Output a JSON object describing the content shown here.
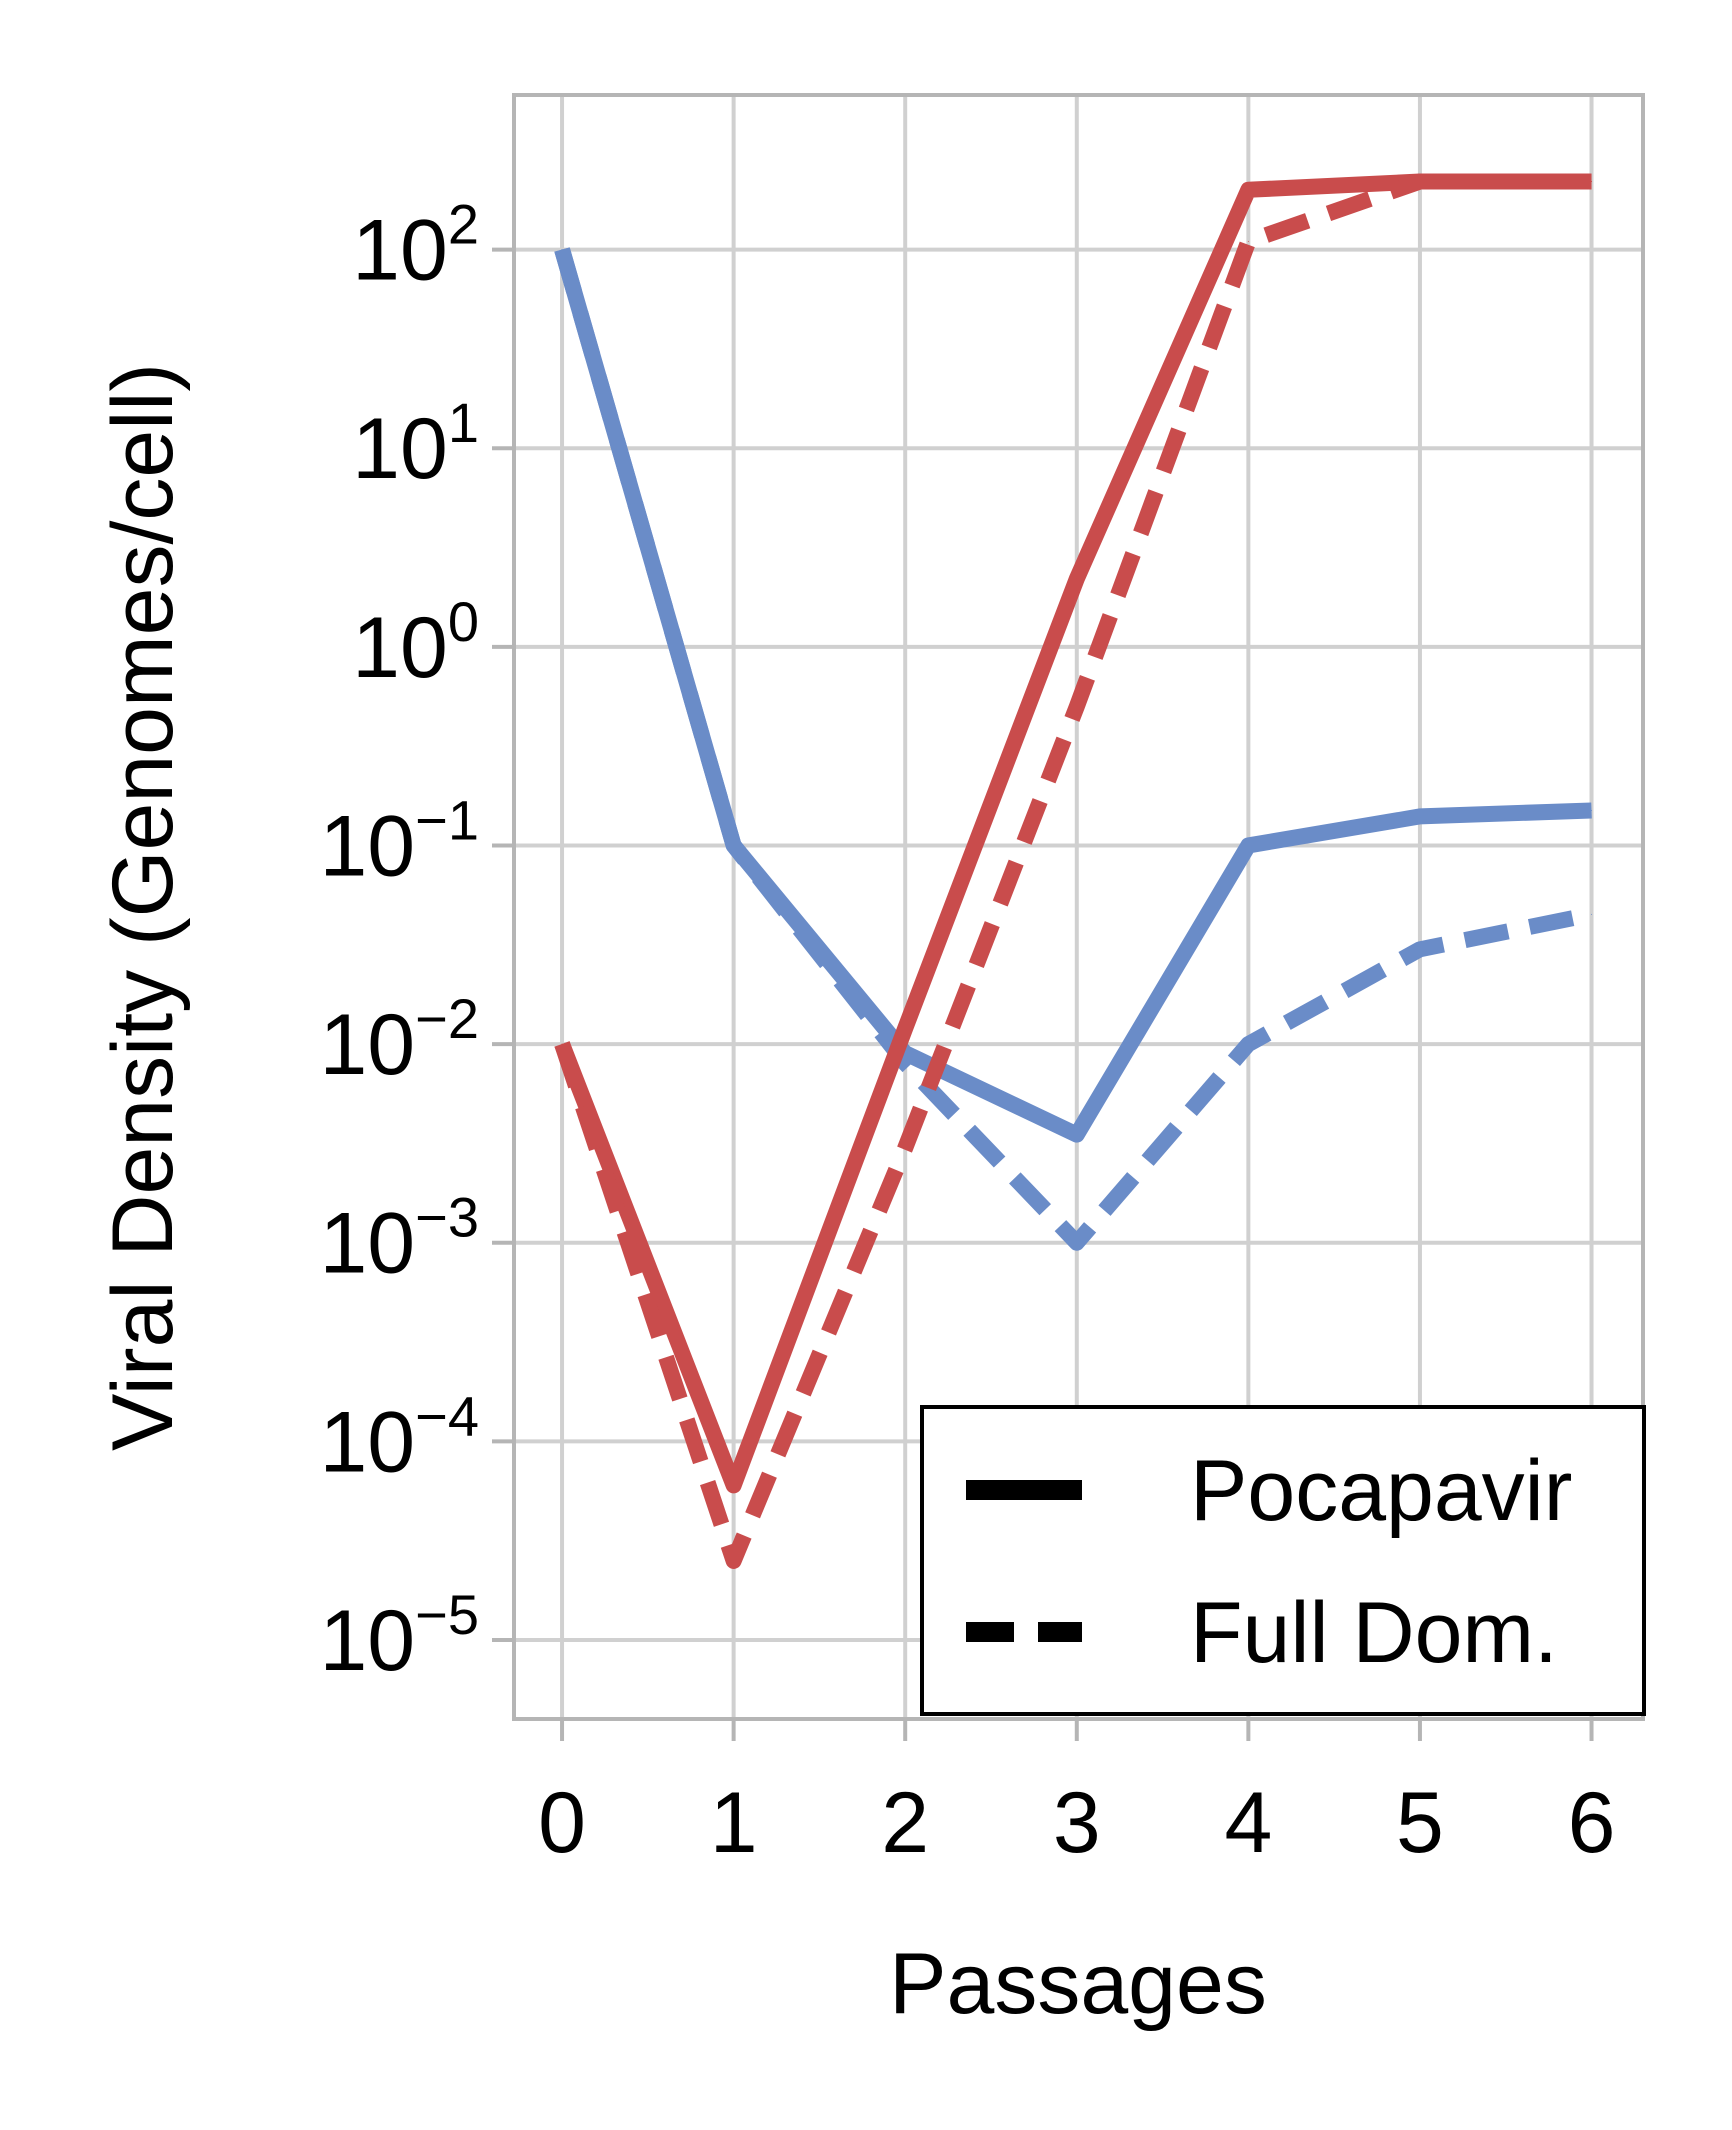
{
  "chart_data": {
    "type": "line",
    "xlabel": "Passages",
    "ylabel": "Viral Density (Genomes/cell)",
    "x": [
      0,
      1,
      2,
      3,
      4,
      5,
      6
    ],
    "x_ticks": [
      "0",
      "1",
      "2",
      "3",
      "4",
      "5",
      "6"
    ],
    "xlim": [
      -0.28,
      6.3
    ],
    "ylim": [
      4e-06,
      600
    ],
    "y_scale": "log",
    "y_ticks": [
      {
        "value": 1e-05,
        "base": "10",
        "exp": "−5"
      },
      {
        "value": 0.0001,
        "base": "10",
        "exp": "−4"
      },
      {
        "value": 0.001,
        "base": "10",
        "exp": "−3"
      },
      {
        "value": 0.01,
        "base": "10",
        "exp": "−2"
      },
      {
        "value": 0.1,
        "base": "10",
        "exp": "−1"
      },
      {
        "value": 1,
        "base": "10",
        "exp": "0"
      },
      {
        "value": 10,
        "base": "10",
        "exp": "1"
      },
      {
        "value": 100,
        "base": "10",
        "exp": "2"
      }
    ],
    "grid": true,
    "legend_position": "bottom-right",
    "legend": [
      {
        "label": "Pocapavir",
        "style": "solid"
      },
      {
        "label": "Full Dom.",
        "style": "dashed"
      }
    ],
    "series": [
      {
        "color": "#6a8cc8",
        "style": "solid",
        "values": [
          100,
          0.1,
          0.009,
          0.0035,
          0.1,
          0.14,
          0.15
        ]
      },
      {
        "color": "#6a8cc8",
        "style": "dashed",
        "values": [
          100,
          0.1,
          0.008,
          0.001,
          0.01,
          0.03,
          0.045
        ]
      },
      {
        "color": "#c94c4c",
        "style": "solid",
        "values": [
          0.01,
          6e-05,
          0.012,
          2.2,
          200,
          220,
          220
        ]
      },
      {
        "color": "#c94c4c",
        "style": "dashed",
        "values": [
          0.01,
          2.5e-05,
          0.003,
          0.5,
          110,
          220,
          220
        ]
      }
    ]
  }
}
